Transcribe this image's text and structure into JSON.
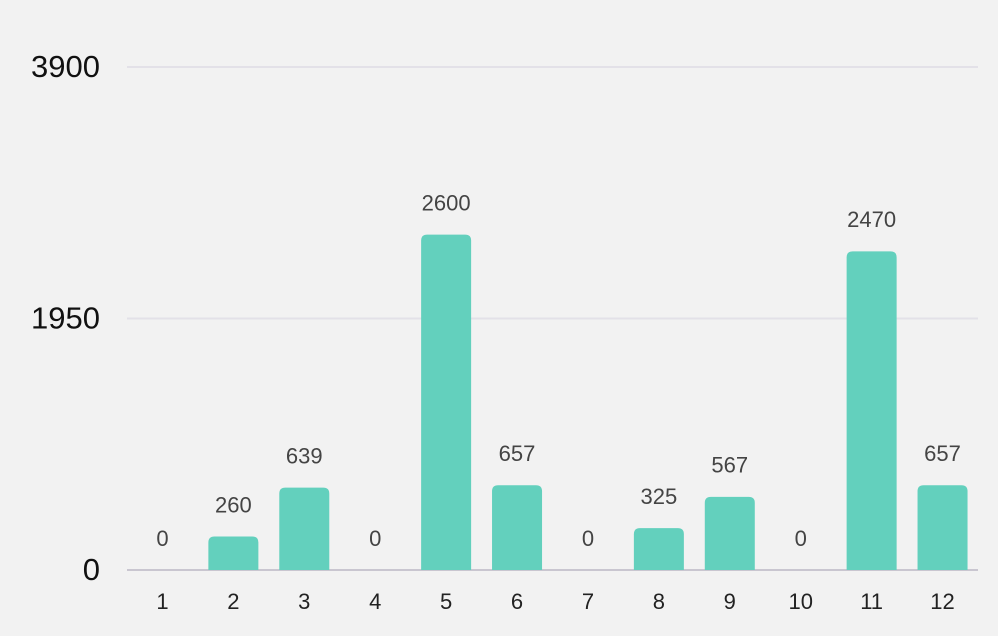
{
  "chart_data": {
    "type": "bar",
    "categories": [
      "1",
      "2",
      "3",
      "4",
      "5",
      "6",
      "7",
      "8",
      "9",
      "10",
      "11",
      "12"
    ],
    "values": [
      0,
      260,
      639,
      0,
      2600,
      657,
      0,
      325,
      567,
      0,
      2470,
      657
    ],
    "color": "#63d0bd",
    "ylim": [
      0,
      3900
    ],
    "yticks": [
      0,
      1950,
      3900
    ],
    "grid": true
  }
}
